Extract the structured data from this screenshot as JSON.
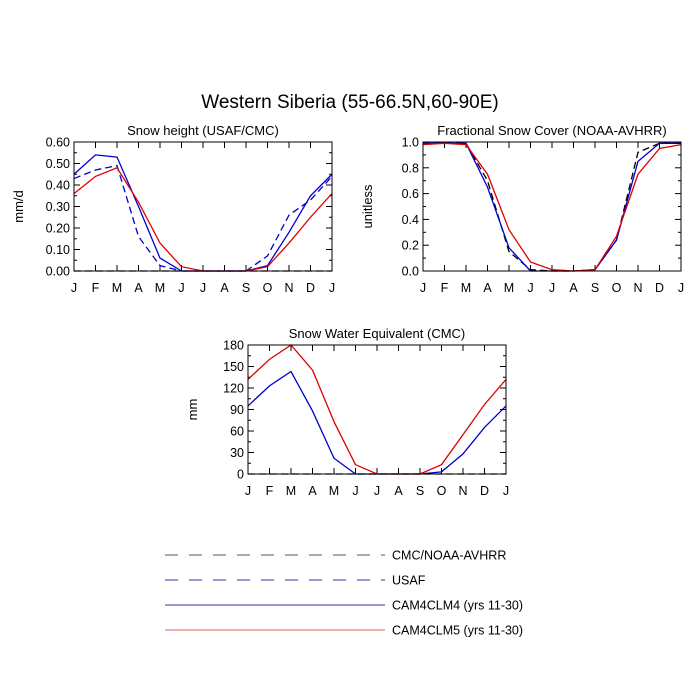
{
  "figure": {
    "title": "Western Siberia (55-66.5N,60-90E)"
  },
  "colors": {
    "cmc_noaa": "#000000",
    "usaf": "#0000cc",
    "cam4clm4": "#0000cc",
    "cam4clm5": "#e00000"
  },
  "legend": [
    {
      "label": "CMC/NOAA-AVHRR",
      "color": "#555555",
      "dash": "dashed"
    },
    {
      "label": "USAF",
      "color": "#3030aa",
      "dash": "dashed"
    },
    {
      "label": "CAM4CLM4 (yrs 11-30)",
      "color": "#3030aa",
      "dash": "solid"
    },
    {
      "label": "CAM4CLM5 (yrs 11-30)",
      "color": "#e06060",
      "dash": "solid"
    }
  ],
  "chart_data": [
    {
      "type": "line",
      "title": "Snow height (USAF/CMC)",
      "xlabel": "",
      "ylabel": "mm/d",
      "categories": [
        "J",
        "F",
        "M",
        "A",
        "M",
        "J",
        "J",
        "A",
        "S",
        "O",
        "N",
        "D",
        "J"
      ],
      "yticks": [
        "0.00",
        "0.10",
        "0.20",
        "0.30",
        "0.40",
        "0.50",
        "0.60"
      ],
      "ylim": [
        0,
        0.6
      ],
      "series": [
        {
          "key": "cmc_noaa",
          "dash": "dashed",
          "values": [
            0,
            0,
            0,
            0,
            0,
            0,
            0,
            0,
            0,
            0,
            0,
            0,
            0
          ]
        },
        {
          "key": "usaf",
          "dash": "dashed",
          "values": [
            0.43,
            0.47,
            0.49,
            0.16,
            0.025,
            0.0,
            0.0,
            0.0,
            0.0,
            0.07,
            0.26,
            0.33,
            0.44
          ]
        },
        {
          "key": "cam4clm4",
          "dash": "solid",
          "values": [
            0.45,
            0.54,
            0.53,
            0.3,
            0.06,
            0.0,
            0.0,
            0.0,
            0.0,
            0.025,
            0.18,
            0.35,
            0.45
          ]
        },
        {
          "key": "cam4clm5",
          "dash": "solid",
          "values": [
            0.36,
            0.44,
            0.48,
            0.32,
            0.13,
            0.02,
            0.0,
            0.0,
            0.0,
            0.02,
            0.13,
            0.25,
            0.36
          ]
        }
      ]
    },
    {
      "type": "line",
      "title": "Fractional Snow Cover (NOAA-AVHRR)",
      "xlabel": "",
      "ylabel": "unitless",
      "categories": [
        "J",
        "F",
        "M",
        "A",
        "M",
        "J",
        "J",
        "A",
        "S",
        "O",
        "N",
        "D",
        "J"
      ],
      "yticks": [
        "0.0",
        "0.2",
        "0.4",
        "0.6",
        "0.8",
        "1.0"
      ],
      "ylim": [
        0,
        1.0
      ],
      "series": [
        {
          "key": "cmc_noaa",
          "dash": "dashed",
          "values": [
            0.99,
            0.99,
            0.99,
            0.7,
            0.15,
            0.01,
            0.0,
            0.0,
            0.01,
            0.24,
            0.92,
            0.99,
            0.99
          ]
        },
        {
          "key": "cam4clm4",
          "dash": "solid",
          "values": [
            0.99,
            0.99,
            0.99,
            0.65,
            0.18,
            0.0,
            0.0,
            0.0,
            0.01,
            0.24,
            0.85,
            0.99,
            0.99
          ]
        },
        {
          "key": "cam4clm5",
          "dash": "solid",
          "values": [
            0.98,
            0.99,
            0.98,
            0.75,
            0.32,
            0.07,
            0.01,
            0.0,
            0.01,
            0.27,
            0.75,
            0.95,
            0.98
          ]
        }
      ]
    },
    {
      "type": "line",
      "title": "Snow Water Equivalent (CMC)",
      "xlabel": "",
      "ylabel": "mm",
      "categories": [
        "J",
        "F",
        "M",
        "A",
        "M",
        "J",
        "J",
        "A",
        "S",
        "O",
        "N",
        "D",
        "J"
      ],
      "yticks": [
        "0",
        "30",
        "60",
        "90",
        "120",
        "150",
        "180"
      ],
      "ylim": [
        0,
        180
      ],
      "series": [
        {
          "key": "cmc_noaa",
          "dash": "dashed",
          "values": [
            0,
            0,
            0,
            0,
            0,
            0,
            0,
            0,
            0,
            0,
            0,
            0,
            0
          ]
        },
        {
          "key": "cam4clm4",
          "dash": "solid",
          "values": [
            95,
            123,
            143,
            88,
            22,
            0,
            0,
            0,
            0,
            3,
            28,
            65,
            95
          ]
        },
        {
          "key": "cam4clm5",
          "dash": "solid",
          "values": [
            132,
            160,
            180,
            145,
            73,
            13,
            0,
            0,
            0,
            13,
            55,
            97,
            132
          ]
        }
      ]
    }
  ]
}
